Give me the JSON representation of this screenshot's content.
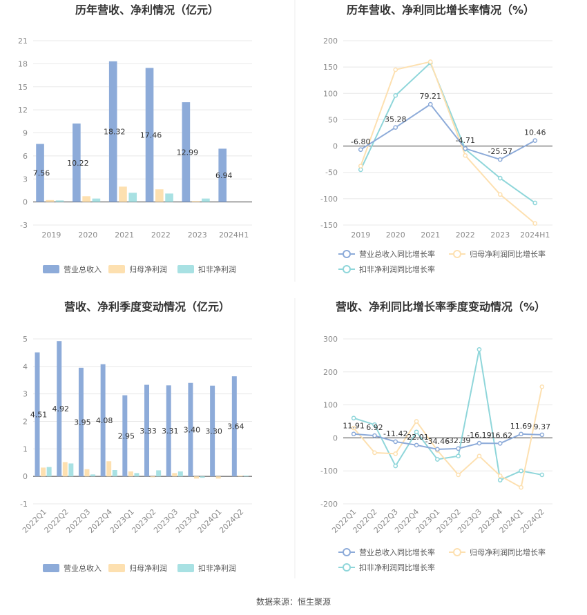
{
  "source_text": "数据来源：恒生聚源",
  "colors": {
    "revenue": "#8dabd9",
    "net_parent": "#fde0b0",
    "net_deducted": "#a8e1e3",
    "revenue_line": "#8dabd9",
    "net_parent_line": "#fde0b0",
    "net_deducted_line": "#8fd6da"
  },
  "chart_data": [
    {
      "id": "annual_bar",
      "type": "bar",
      "title": "历年营收、净利情况（亿元）",
      "categories": [
        "2019",
        "2020",
        "2021",
        "2022",
        "2023",
        "2024H1"
      ],
      "ylim": [
        -3,
        21
      ],
      "yticks": [
        -3,
        0,
        3,
        6,
        9,
        12,
        15,
        18,
        21
      ],
      "series": [
        {
          "name": "营业总收入",
          "values": [
            7.56,
            10.22,
            18.32,
            17.46,
            12.99,
            6.94
          ],
          "labels": [
            "7.56",
            "10.22",
            "18.32",
            "17.46",
            "12.99",
            "6.94"
          ]
        },
        {
          "name": "归母净利润",
          "values": [
            0.25,
            0.75,
            2.0,
            1.65,
            0.12,
            0.0
          ]
        },
        {
          "name": "扣非净利润",
          "values": [
            0.2,
            0.45,
            1.2,
            1.1,
            0.45,
            0.0
          ]
        }
      ],
      "legend": "bottom"
    },
    {
      "id": "annual_line",
      "type": "line",
      "title": "历年营收、净利同比增长率情况（%）",
      "categories": [
        "2019",
        "2020",
        "2021",
        "2022",
        "2023",
        "2024H1"
      ],
      "ylim": [
        -150,
        200
      ],
      "yticks": [
        -150,
        -100,
        -50,
        0,
        50,
        100,
        150,
        200
      ],
      "series": [
        {
          "name": "营业总收入同比增长率",
          "values": [
            -6.8,
            35.28,
            79.21,
            -4.71,
            -25.57,
            10.46
          ],
          "labels": [
            "-6.80",
            "35.28",
            "79.21",
            "-4.71",
            "-25.57",
            "10.46"
          ]
        },
        {
          "name": "归母净利润同比增长率",
          "values": [
            -38,
            145,
            160,
            -18,
            -92,
            -147
          ]
        },
        {
          "name": "扣非净利润同比增长率",
          "values": [
            -45,
            96,
            158,
            -6,
            -61,
            -108
          ]
        }
      ],
      "legend": "bottom"
    },
    {
      "id": "quarter_bar",
      "type": "bar",
      "title": "营收、净利季度变动情况（亿元）",
      "categories": [
        "2022Q1",
        "2022Q2",
        "2022Q3",
        "2022Q4",
        "2023Q1",
        "2023Q2",
        "2023Q3",
        "2023Q4",
        "2024Q1",
        "2024Q2"
      ],
      "ylim": [
        -1,
        5
      ],
      "yticks": [
        -1,
        0,
        1,
        2,
        3,
        4,
        5
      ],
      "series": [
        {
          "name": "营业总收入",
          "values": [
            4.51,
            4.92,
            3.95,
            4.08,
            2.95,
            3.33,
            3.31,
            3.4,
            3.3,
            3.64
          ],
          "labels": [
            "4.51",
            "4.92",
            "3.95",
            "4.08",
            "2.95",
            "3.33",
            "3.31",
            "3.40",
            "3.30",
            "3.64"
          ]
        },
        {
          "name": "归母净利润",
          "values": [
            0.32,
            0.52,
            0.26,
            0.55,
            0.18,
            -0.03,
            0.12,
            -0.08,
            -0.08,
            0.03
          ]
        },
        {
          "name": "扣非净利润",
          "values": [
            0.34,
            0.47,
            0.07,
            0.23,
            0.12,
            0.22,
            0.18,
            -0.05,
            0.0,
            0.03
          ]
        }
      ],
      "legend": "bottom"
    },
    {
      "id": "quarter_line",
      "type": "line",
      "title": "营收、净利同比增长率季度变动情况（%）",
      "categories": [
        "2022Q1",
        "2022Q2",
        "2022Q3",
        "2022Q4",
        "2023Q1",
        "2023Q2",
        "2023Q3",
        "2023Q4",
        "2024Q1",
        "2024Q2"
      ],
      "ylim": [
        -200,
        300
      ],
      "yticks": [
        -200,
        -100,
        0,
        100,
        200,
        300
      ],
      "series": [
        {
          "name": "营业总收入同比增长率",
          "values": [
            11.91,
            6.92,
            -11.42,
            -22.01,
            -34.46,
            -32.39,
            -16.19,
            -16.62,
            11.69,
            9.37
          ],
          "labels": [
            "11.91",
            "6.92",
            "-11.42",
            "-22.01",
            "-34.46",
            "-32.39",
            "-16.19",
            "-16.62",
            "11.69",
            "9.37"
          ]
        },
        {
          "name": "归母净利润同比增长率",
          "values": [
            30,
            -45,
            -48,
            50,
            -38,
            -112,
            -55,
            -115,
            -150,
            155
          ]
        },
        {
          "name": "扣非净利润同比增长率",
          "values": [
            60,
            40,
            -85,
            18,
            -65,
            -55,
            268,
            -128,
            -100,
            -112
          ]
        }
      ],
      "legend": "bottom"
    }
  ]
}
